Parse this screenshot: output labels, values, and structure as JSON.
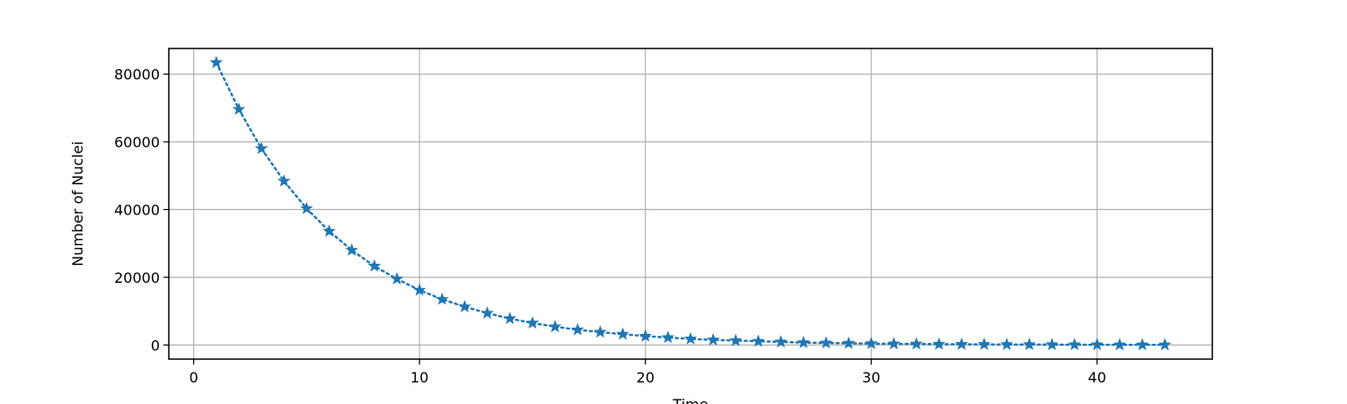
{
  "chart_data": {
    "type": "line",
    "title": "",
    "xlabel": "Time",
    "ylabel": "Number of Nuclei",
    "xlim": [
      -1.1,
      45.1
    ],
    "ylim": [
      -4170,
      87570
    ],
    "xticks": [
      0,
      10,
      20,
      30,
      40
    ],
    "yticks": [
      0,
      20000,
      40000,
      60000,
      80000
    ],
    "grid": true,
    "line_style": "dotted",
    "marker": "star",
    "color": "#1f77b4",
    "series": [
      {
        "x": [
          1,
          2,
          3,
          4,
          5,
          6,
          7,
          8,
          9,
          10,
          11,
          12,
          13,
          14,
          15,
          16,
          17,
          18,
          19,
          20,
          21,
          22,
          23,
          24,
          25,
          26,
          27,
          28,
          29,
          30,
          31,
          32,
          33,
          34,
          35,
          36,
          37,
          38,
          39,
          40,
          41,
          42,
          43
        ],
        "y": [
          83400,
          69600,
          58000,
          48400,
          40300,
          33600,
          28000,
          23300,
          19500,
          16200,
          13500,
          11300,
          9400,
          7800,
          6500,
          5400,
          4500,
          3800,
          3200,
          2600,
          2200,
          1800,
          1500,
          1300,
          1100,
          900,
          700,
          600,
          500,
          400,
          350,
          300,
          250,
          200,
          170,
          140,
          120,
          100,
          80,
          70,
          60,
          50,
          40
        ]
      }
    ]
  }
}
